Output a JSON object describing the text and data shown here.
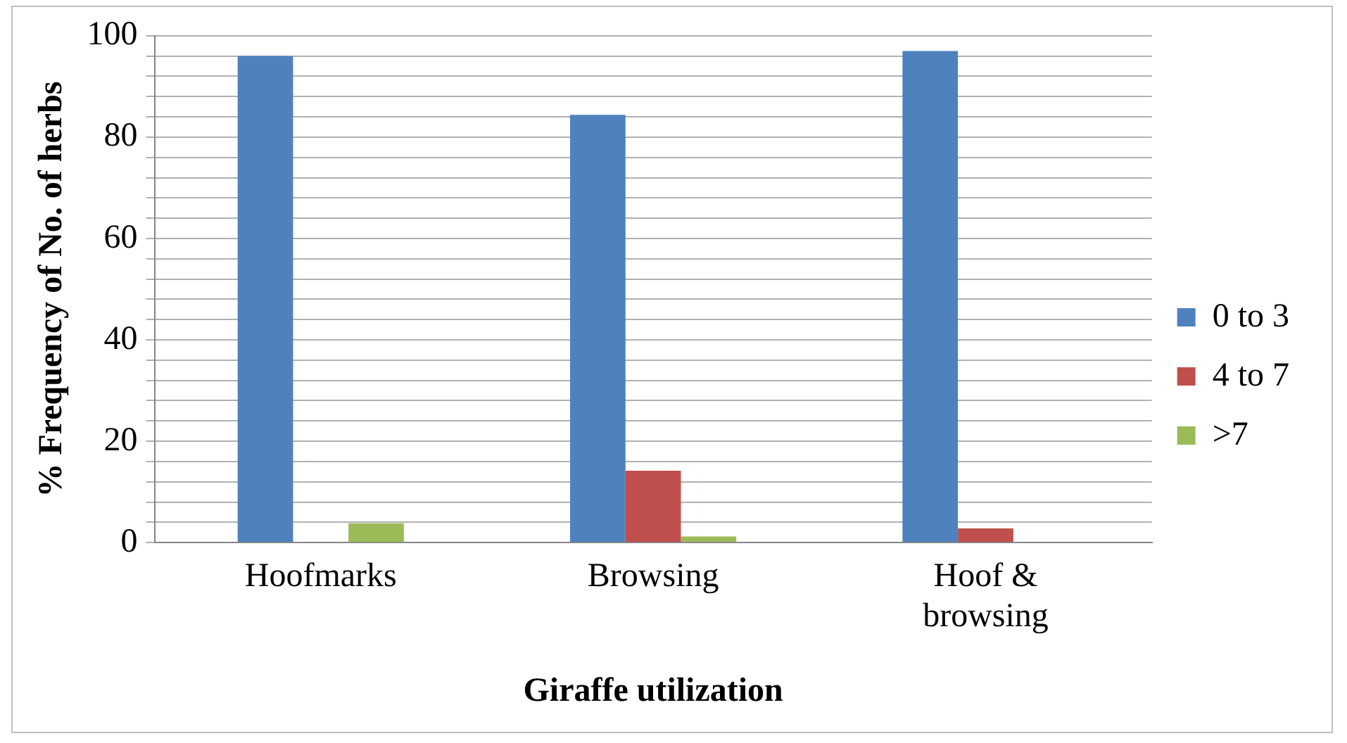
{
  "chart_data": {
    "type": "bar",
    "xlabel": "Giraffe utilization",
    "ylabel": "% Frequency of No. of herbs",
    "categories": [
      "Hoofmarks",
      "Browsing",
      "Hoof & browsing"
    ],
    "series": [
      {
        "name": "0 to 3",
        "color": "#4f81bd",
        "values": [
          96,
          84.4,
          97
        ]
      },
      {
        "name": "4 to 7",
        "color": "#c0504d",
        "values": [
          0,
          14.2,
          2.8
        ]
      },
      {
        "name": ">7",
        "color": "#9bbb59",
        "values": [
          3.8,
          1.2,
          0
        ]
      }
    ],
    "ylim": [
      0,
      100
    ],
    "yticks": [
      0,
      {
        "value": 4,
        "label": null
      },
      {
        "value": 8,
        "label": null
      },
      {
        "value": 12,
        "label": null
      },
      {
        "value": 16,
        "label": null
      },
      20,
      {
        "value": 24,
        "label": null
      },
      {
        "value": 28,
        "label": null
      },
      {
        "value": 32,
        "label": null
      },
      {
        "value": 36,
        "label": null
      },
      40,
      {
        "value": 44,
        "label": null
      },
      {
        "value": 48,
        "label": null
      },
      {
        "value": 52,
        "label": null
      },
      {
        "value": 56,
        "label": null
      },
      60,
      {
        "value": 64,
        "label": null
      },
      {
        "value": 68,
        "label": null
      },
      {
        "value": 72,
        "label": null
      },
      {
        "value": 76,
        "label": null
      },
      80,
      {
        "value": 84,
        "label": null
      },
      {
        "value": 88,
        "label": null
      },
      {
        "value": 92,
        "label": null
      },
      {
        "value": 96,
        "label": null
      },
      100
    ],
    "grid": "y",
    "legend": "right"
  }
}
